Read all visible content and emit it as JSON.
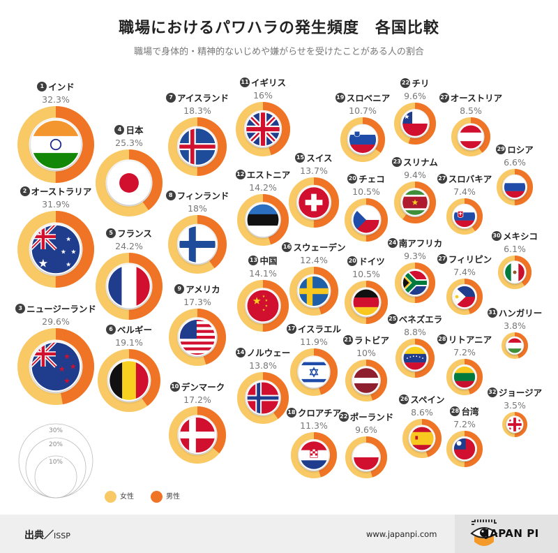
{
  "title": "職場におけるパワハラの発生頻度　各国比較",
  "subtitle": "職場で身体的・精神的ないじめや嫌がらせを受けたことがある人の割合",
  "colors": {
    "female": "#F8C965",
    "male": "#F07426",
    "badge": "#3e3e3e"
  },
  "chart_data": {
    "type": "donut",
    "title": "職場におけるパワハラの発生頻度　各国比較",
    "value_unit": "%",
    "size_scale_labels": [
      "30%",
      "20%",
      "10%"
    ],
    "legend": [
      {
        "key": "female",
        "label": "女性"
      },
      {
        "key": "male",
        "label": "男性"
      }
    ],
    "countries": [
      {
        "rank": "1",
        "name": "インド",
        "value": 32.3,
        "pct_label": "32.3%",
        "male_share": 0.5,
        "flag": "india"
      },
      {
        "rank": "2",
        "name": "オーストラリア",
        "value": 31.9,
        "pct_label": "31.9%",
        "male_share": 0.5,
        "flag": "australia"
      },
      {
        "rank": "3",
        "name": "ニュージーランド",
        "value": 29.6,
        "pct_label": "29.6%",
        "male_share": 0.47,
        "flag": "newzealand"
      },
      {
        "rank": "4",
        "name": "日本",
        "value": 25.3,
        "pct_label": "25.3%",
        "male_share": 0.4,
        "flag": "japan"
      },
      {
        "rank": "5",
        "name": "フランス",
        "value": 24.2,
        "pct_label": "24.2%",
        "male_share": 0.5,
        "flag": "france"
      },
      {
        "rank": "6",
        "name": "ベルギー",
        "value": 19.1,
        "pct_label": "19.1%",
        "male_share": 0.4,
        "flag": "belgium"
      },
      {
        "rank": "7",
        "name": "アイスランド",
        "value": 18.3,
        "pct_label": "18.3%",
        "male_share": 0.5,
        "flag": "iceland"
      },
      {
        "rank": "8",
        "name": "フィンランド",
        "value": 18,
        "pct_label": "18%",
        "male_share": 0.4,
        "flag": "finland"
      },
      {
        "rank": "9",
        "name": "アメリカ",
        "value": 17.3,
        "pct_label": "17.3%",
        "male_share": 0.45,
        "flag": "usa"
      },
      {
        "rank": "10",
        "name": "デンマーク",
        "value": 17.2,
        "pct_label": "17.2%",
        "male_share": 0.36,
        "flag": "denmark"
      },
      {
        "rank": "11",
        "name": "イギリス",
        "value": 16,
        "pct_label": "16%",
        "male_share": 0.45,
        "flag": "uk"
      },
      {
        "rank": "12",
        "name": "エストニア",
        "value": 14.2,
        "pct_label": "14.2%",
        "male_share": 0.45,
        "flag": "estonia"
      },
      {
        "rank": "13",
        "name": "中国",
        "value": 14.1,
        "pct_label": "14.1%",
        "male_share": 0.5,
        "flag": "china"
      },
      {
        "rank": "14",
        "name": "ノルウェー",
        "value": 13.8,
        "pct_label": "13.8%",
        "male_share": 0.4,
        "flag": "norway"
      },
      {
        "rank": "15",
        "name": "スイス",
        "value": 13.7,
        "pct_label": "13.7%",
        "male_share": 0.5,
        "flag": "switzerland"
      },
      {
        "rank": "16",
        "name": "スウェーデン",
        "value": 12.4,
        "pct_label": "12.4%",
        "male_share": 0.45,
        "flag": "sweden"
      },
      {
        "rank": "17",
        "name": "イスラエル",
        "value": 11.9,
        "pct_label": "11.9%",
        "male_share": 0.45,
        "flag": "israel"
      },
      {
        "rank": "18",
        "name": "クロアチア",
        "value": 11.3,
        "pct_label": "11.3%",
        "male_share": 0.45,
        "flag": "croatia"
      },
      {
        "rank": "19",
        "name": "スロベニア",
        "value": 10.7,
        "pct_label": "10.7%",
        "male_share": 0.35,
        "flag": "slovenia"
      },
      {
        "rank": "20",
        "name": "チェコ",
        "value": 10.5,
        "pct_label": "10.5%",
        "male_share": 0.5,
        "flag": "czech"
      },
      {
        "rank": "20",
        "name": "ドイツ",
        "value": 10.5,
        "pct_label": "10.5%",
        "male_share": 0.5,
        "flag": "germany"
      },
      {
        "rank": "21",
        "name": "ラトビア",
        "value": 10,
        "pct_label": "10%",
        "male_share": 0.45,
        "flag": "latvia"
      },
      {
        "rank": "22",
        "name": "チリ",
        "value": 9.6,
        "pct_label": "9.6%",
        "male_share": 0.55,
        "flag": "chile"
      },
      {
        "rank": "22",
        "name": "ポーランド",
        "value": 9.6,
        "pct_label": "9.6%",
        "male_share": 0.45,
        "flag": "poland"
      },
      {
        "rank": "23",
        "name": "スリナム",
        "value": 9.4,
        "pct_label": "9.4%",
        "male_share": 0.6,
        "flag": "suriname"
      },
      {
        "rank": "24",
        "name": "南アフリカ",
        "value": 9.3,
        "pct_label": "9.3%",
        "male_share": 0.5,
        "flag": "southafrica"
      },
      {
        "rank": "25",
        "name": "ベネズエラ",
        "value": 8.8,
        "pct_label": "8.8%",
        "male_share": 0.5,
        "flag": "venezuela"
      },
      {
        "rank": "26",
        "name": "スペイン",
        "value": 8.6,
        "pct_label": "8.6%",
        "male_share": 0.45,
        "flag": "spain"
      },
      {
        "rank": "27",
        "name": "オーストリア",
        "value": 8.5,
        "pct_label": "8.5%",
        "male_share": 0.4,
        "flag": "austria"
      },
      {
        "rank": "27",
        "name": "スロバキア",
        "value": 7.4,
        "pct_label": "7.4%",
        "male_share": 0.4,
        "flag": "slovakia"
      },
      {
        "rank": "27",
        "name": "フィリピン",
        "value": 7.4,
        "pct_label": "7.4%",
        "male_share": 0.45,
        "flag": "philippines"
      },
      {
        "rank": "28",
        "name": "リトアニア",
        "value": 7.2,
        "pct_label": "7.2%",
        "male_share": 0.45,
        "flag": "lithuania"
      },
      {
        "rank": "28",
        "name": "台湾",
        "value": 7.2,
        "pct_label": "7.2%",
        "male_share": 0.5,
        "flag": "taiwan"
      },
      {
        "rank": "29",
        "name": "ロシア",
        "value": 6.6,
        "pct_label": "6.6%",
        "male_share": 0.5,
        "flag": "russia"
      },
      {
        "rank": "30",
        "name": "メキシコ",
        "value": 6.1,
        "pct_label": "6.1%",
        "male_share": 0.4,
        "flag": "mexico"
      },
      {
        "rank": "31",
        "name": "ハンガリー",
        "value": 3.8,
        "pct_label": "3.8%",
        "male_share": 0.45,
        "flag": "hungary"
      },
      {
        "rank": "32",
        "name": "ジョージア",
        "value": 3.5,
        "pct_label": "3.5%",
        "male_share": 0.5,
        "flag": "georgia"
      }
    ]
  },
  "footer": {
    "source_label": "出典／",
    "source": "ISSP",
    "url": "www.japanpi.com",
    "logo": "JAPAN PI"
  }
}
